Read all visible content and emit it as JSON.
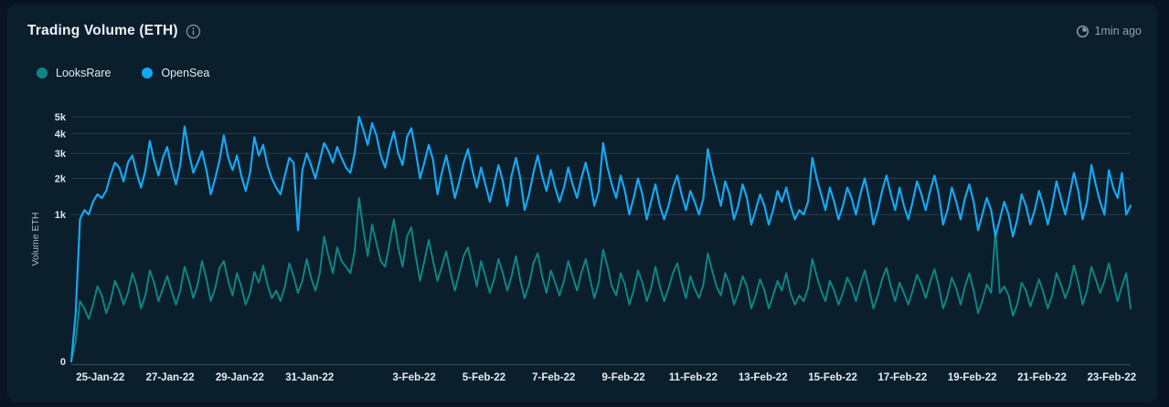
{
  "header": {
    "title": "Trading Volume (ETH)",
    "updated": "1min ago"
  },
  "legend": [
    {
      "label": "LooksRare",
      "color": "#0E8584"
    },
    {
      "label": "OpenSea",
      "color": "#17A7F0"
    }
  ],
  "colors": {
    "card_bg": "#0B1E2C",
    "page_bg": "#081421",
    "grid": "#253E4F",
    "axis_line": "#2E4757",
    "tick_text": "#DCE4EB",
    "muted_text": "#94A0AB"
  },
  "chart_data": {
    "type": "line",
    "title": "Trading Volume (ETH)",
    "xlabel": "",
    "ylabel": "Volume ETH",
    "ylim": [
      0,
      5000
    ],
    "y_scale": "power",
    "y_scale_exponent": 0.317,
    "grid": "horizontal",
    "legend_position": "top-left",
    "y_ticks": [
      "0",
      "1k",
      "2k",
      "3k",
      "4k",
      "5k"
    ],
    "y_tick_values": [
      0,
      1000,
      2000,
      3000,
      4000,
      5000
    ],
    "x_tick_labels": [
      "25-Jan-22",
      "27-Jan-22",
      "29-Jan-22",
      "31-Jan-22",
      "3-Feb-22",
      "5-Feb-22",
      "7-Feb-22",
      "9-Feb-22",
      "11-Feb-22",
      "13-Feb-22",
      "15-Feb-22",
      "17-Feb-22",
      "19-Feb-22",
      "21-Feb-22",
      "23-Feb-22"
    ],
    "x_tick_day_offsets": [
      0.833,
      2.833,
      4.833,
      6.833,
      9.833,
      11.833,
      13.833,
      15.833,
      17.833,
      19.833,
      21.833,
      23.833,
      25.833,
      27.833,
      29.833
    ],
    "x_start": "24-Jan-22 ~04:00",
    "points_per_day": 8,
    "series": [
      {
        "name": "LooksRare",
        "color": "#0E8584",
        "stroke_width": 2,
        "values": [
          0,
          2,
          60,
          40,
          20,
          50,
          120,
          80,
          30,
          60,
          150,
          100,
          50,
          90,
          200,
          120,
          40,
          80,
          220,
          140,
          60,
          110,
          180,
          100,
          50,
          100,
          250,
          150,
          70,
          130,
          300,
          160,
          60,
          110,
          240,
          300,
          150,
          80,
          200,
          120,
          50,
          90,
          210,
          140,
          260,
          130,
          70,
          100,
          60,
          120,
          280,
          180,
          90,
          150,
          320,
          170,
          100,
          200,
          600,
          350,
          200,
          450,
          300,
          250,
          200,
          400,
          1400,
          700,
          350,
          800,
          500,
          300,
          250,
          500,
          900,
          450,
          250,
          600,
          750,
          350,
          150,
          300,
          550,
          300,
          150,
          250,
          400,
          200,
          100,
          200,
          350,
          450,
          250,
          120,
          300,
          180,
          90,
          160,
          320,
          200,
          100,
          180,
          350,
          150,
          70,
          130,
          280,
          380,
          180,
          90,
          220,
          140,
          80,
          150,
          300,
          180,
          100,
          200,
          320,
          160,
          70,
          140,
          420,
          250,
          120,
          80,
          200,
          130,
          50,
          100,
          220,
          140,
          60,
          110,
          250,
          120,
          60,
          110,
          200,
          280,
          140,
          70,
          180,
          110,
          70,
          130,
          380,
          220,
          120,
          80,
          200,
          130,
          50,
          90,
          180,
          120,
          40,
          80,
          160,
          100,
          40,
          80,
          150,
          100,
          200,
          90,
          50,
          80,
          60,
          110,
          320,
          180,
          100,
          60,
          150,
          100,
          50,
          90,
          170,
          120,
          60,
          130,
          220,
          110,
          40,
          80,
          160,
          240,
          120,
          60,
          140,
          90,
          50,
          100,
          190,
          130,
          70,
          140,
          230,
          120,
          40,
          80,
          170,
          110,
          50,
          120,
          200,
          100,
          30,
          60,
          130,
          90,
          700,
          90,
          120,
          80,
          25,
          50,
          140,
          100,
          45,
          90,
          160,
          90,
          40,
          80,
          200,
          130,
          70,
          120,
          260,
          140,
          50,
          100,
          250,
          160,
          90,
          150,
          280,
          140,
          60,
          120,
          200,
          40
        ]
      },
      {
        "name": "OpenSea",
        "color": "#17A7F0",
        "stroke_width": 2.2,
        "values": [
          0,
          30,
          900,
          1100,
          1000,
          1300,
          1500,
          1400,
          1600,
          2100,
          2600,
          2400,
          1900,
          2600,
          2900,
          2200,
          1700,
          2300,
          3600,
          2700,
          2100,
          2800,
          3300,
          2400,
          1800,
          2500,
          4400,
          3000,
          2200,
          2600,
          3100,
          2300,
          1500,
          2000,
          2700,
          3900,
          2800,
          2300,
          2900,
          2100,
          1600,
          2200,
          3800,
          2900,
          3400,
          2500,
          2000,
          1700,
          1500,
          2100,
          2800,
          2600,
          700,
          2300,
          3000,
          2500,
          2000,
          2700,
          3500,
          3100,
          2600,
          3300,
          2800,
          2400,
          2200,
          3000,
          5000,
          4200,
          3400,
          4600,
          3900,
          2900,
          2400,
          3300,
          4100,
          3000,
          2500,
          3800,
          4300,
          3100,
          2000,
          2600,
          3400,
          2700,
          1500,
          2200,
          2900,
          2100,
          1400,
          1900,
          2600,
          3200,
          2300,
          1700,
          2400,
          1800,
          1300,
          1800,
          2500,
          1900,
          1200,
          2100,
          2800,
          2000,
          1100,
          1500,
          2200,
          2900,
          2100,
          1600,
          2300,
          1700,
          1300,
          1700,
          2400,
          1800,
          1400,
          2000,
          2600,
          1900,
          1200,
          1600,
          3500,
          2400,
          1800,
          1400,
          2100,
          1600,
          1000,
          1400,
          2000,
          1500,
          900,
          1300,
          1800,
          1200,
          900,
          1200,
          1700,
          2100,
          1500,
          1100,
          1600,
          1300,
          1000,
          1400,
          3200,
          2300,
          1700,
          1200,
          1900,
          1500,
          900,
          1200,
          1800,
          1400,
          800,
          1100,
          1500,
          1200,
          800,
          1100,
          1600,
          1300,
          1700,
          1200,
          900,
          1100,
          1000,
          1300,
          2800,
          2000,
          1500,
          1100,
          1700,
          1300,
          900,
          1200,
          1700,
          1400,
          1000,
          1500,
          2000,
          1400,
          800,
          1100,
          1600,
          2100,
          1500,
          1100,
          1700,
          1200,
          900,
          1300,
          1900,
          1500,
          1100,
          1600,
          2100,
          1500,
          800,
          1100,
          1700,
          1300,
          900,
          1400,
          1800,
          1300,
          700,
          1000,
          1400,
          1100,
          600,
          900,
          1300,
          1000,
          600,
          900,
          1500,
          1200,
          800,
          1100,
          1600,
          1200,
          800,
          1200,
          1900,
          1400,
          1000,
          1500,
          2200,
          1600,
          900,
          1300,
          2500,
          1800,
          1300,
          1000,
          2300,
          1700,
          1400,
          2200,
          1000,
          1200
        ]
      }
    ]
  }
}
